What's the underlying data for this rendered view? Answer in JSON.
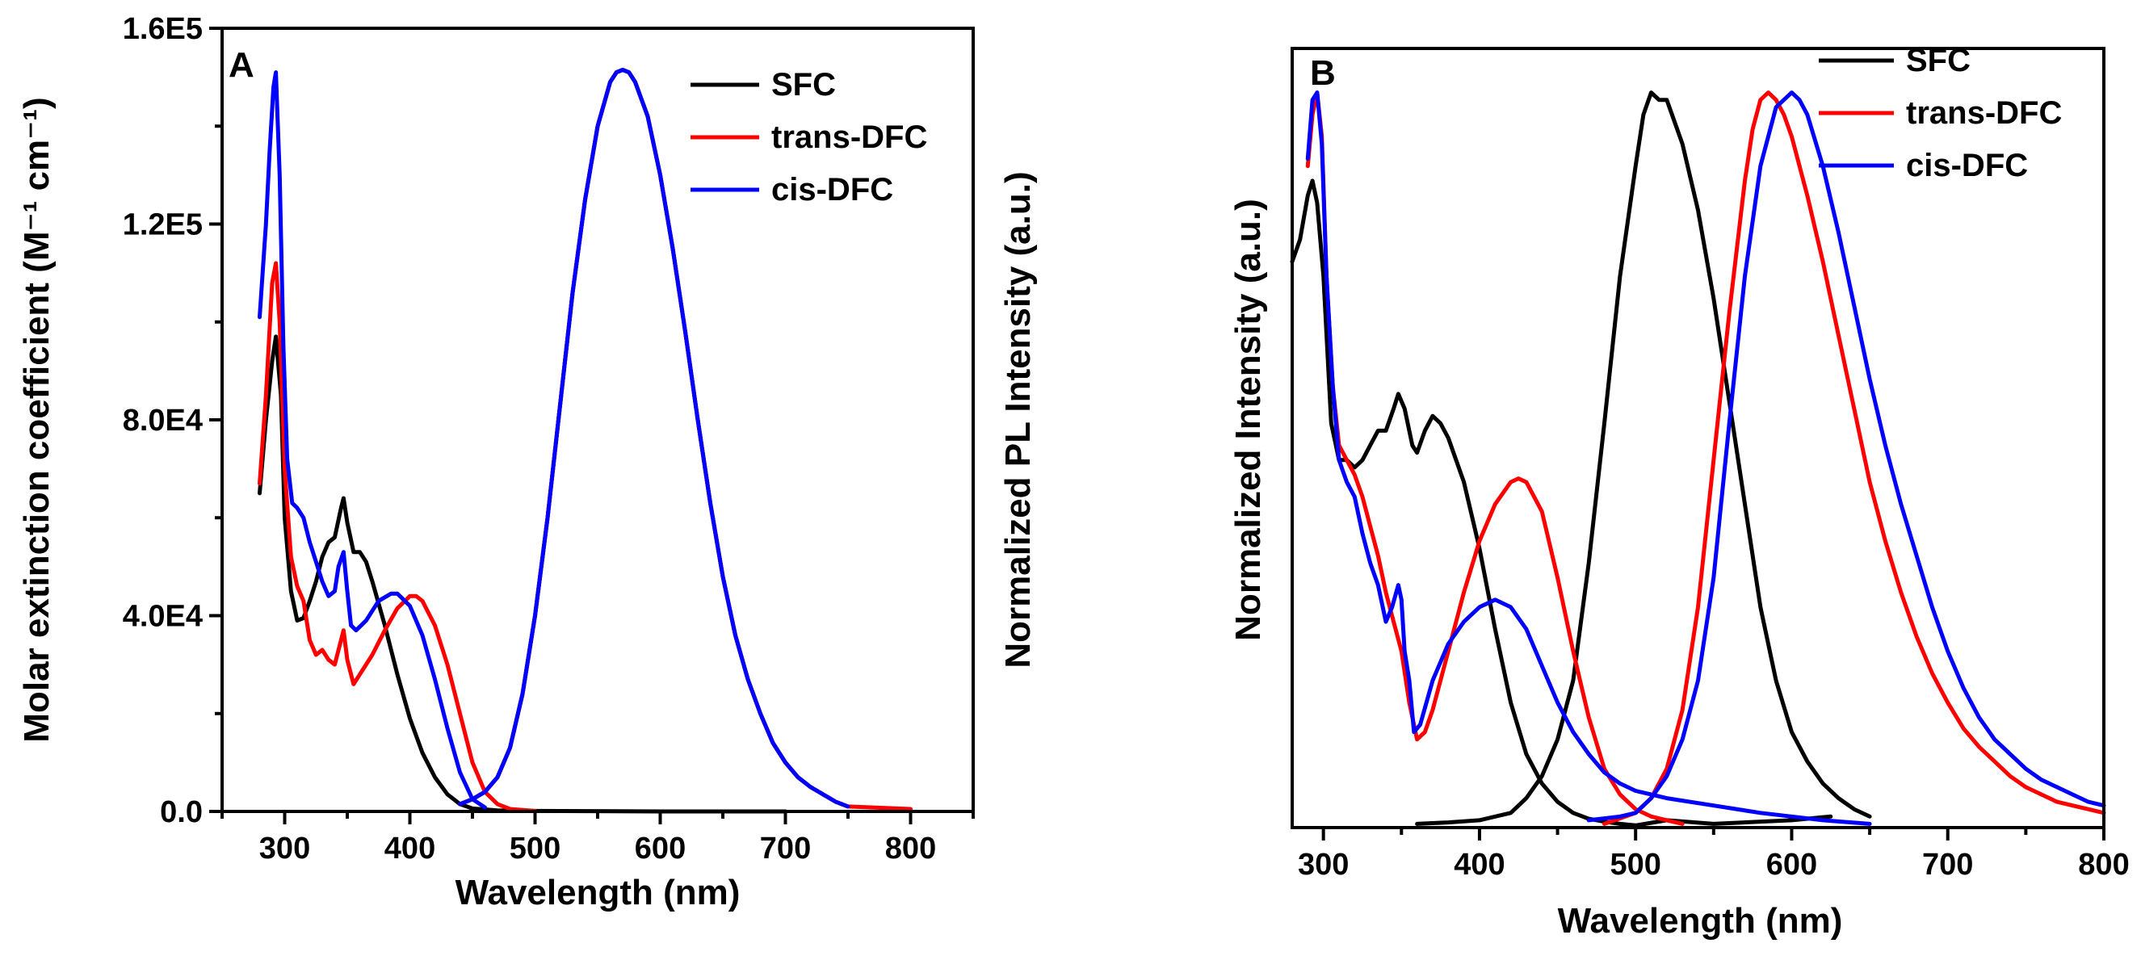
{
  "colors": {
    "SFC": "#000000",
    "trans-DFC": "#ff0000",
    "cis-DFC": "#0000ff"
  },
  "chart_data": [
    {
      "type": "line",
      "panel_label": "A",
      "xlabel": "Wavelength (nm)",
      "ylabel_left": "Molar extinction coefficient (M⁻¹ cm⁻¹)",
      "ylabel_right": "Normalized PL Intensity (a.u.)",
      "xlim": [
        250,
        850
      ],
      "ylim": [
        0,
        160000
      ],
      "xticks": [
        "300",
        "400",
        "500",
        "600",
        "700",
        "800"
      ],
      "xtick_values": [
        300,
        400,
        500,
        600,
        700,
        800
      ],
      "yticks": [
        "0.0",
        "4.0E4",
        "8.0E4",
        "1.2E5",
        "1.6E5"
      ],
      "ytick_values": [
        0,
        40000,
        80000,
        120000,
        160000
      ],
      "legend_position": "top-right",
      "legend": [
        "SFC",
        "trans-DFC",
        "cis-DFC"
      ],
      "series": [
        {
          "name": "SFC",
          "kind": "absorption",
          "x": [
            280,
            285,
            290,
            293,
            297,
            300,
            305,
            310,
            315,
            320,
            325,
            330,
            335,
            340,
            345,
            347,
            350,
            355,
            360,
            365,
            370,
            380,
            390,
            400,
            410,
            420,
            430,
            440,
            450,
            470,
            500,
            600,
            700
          ],
          "y": [
            65000,
            80000,
            92000,
            97000,
            85000,
            60000,
            45000,
            39000,
            39500,
            43000,
            47000,
            52000,
            55000,
            56000,
            62000,
            64000,
            59000,
            53000,
            53000,
            51000,
            47000,
            38000,
            28000,
            19000,
            12000,
            7000,
            3500,
            1500,
            600,
            200,
            100,
            0,
            0
          ]
        },
        {
          "name": "trans-DFC",
          "kind": "absorption",
          "x": [
            280,
            285,
            290,
            293,
            296,
            300,
            305,
            310,
            315,
            320,
            325,
            330,
            335,
            340,
            345,
            347,
            350,
            355,
            360,
            370,
            380,
            390,
            400,
            405,
            410,
            420,
            430,
            440,
            450,
            460,
            470,
            480,
            500
          ],
          "y": [
            67000,
            85000,
            108000,
            112000,
            100000,
            70000,
            52000,
            46000,
            43000,
            35000,
            32000,
            33000,
            31000,
            30000,
            35000,
            37000,
            31000,
            26000,
            28000,
            32000,
            37000,
            41500,
            44000,
            44000,
            43000,
            38000,
            30000,
            20000,
            10000,
            4000,
            1500,
            500,
            100
          ]
        },
        {
          "name": "cis-DFC",
          "kind": "absorption",
          "x": [
            280,
            285,
            288,
            291,
            293,
            296,
            299,
            302,
            306,
            310,
            315,
            320,
            325,
            330,
            335,
            340,
            343,
            347,
            350,
            353,
            357,
            365,
            375,
            385,
            390,
            400,
            410,
            420,
            430,
            440,
            450,
            460
          ],
          "y": [
            101000,
            120000,
            135000,
            148000,
            151000,
            130000,
            95000,
            72000,
            63000,
            62000,
            60000,
            55000,
            51000,
            47000,
            44000,
            45000,
            50000,
            53000,
            45000,
            38000,
            37000,
            39000,
            43000,
            44500,
            44500,
            42000,
            36000,
            27000,
            17000,
            8000,
            2500,
            800
          ]
        },
        {
          "name": "SFC",
          "kind": "pl",
          "x": [
            440,
            450,
            460,
            470,
            480,
            490,
            500,
            510,
            520,
            530,
            540,
            550,
            560,
            565,
            570,
            575,
            580,
            590,
            600,
            610,
            620,
            630,
            640,
            650,
            660,
            670,
            680,
            690,
            700,
            710,
            720,
            730,
            740,
            750
          ],
          "y": [
            1500,
            2500,
            4000,
            7000,
            13000,
            24000,
            40000,
            60000,
            83000,
            106000,
            125000,
            140000,
            149000,
            151000,
            151500,
            151000,
            149000,
            142000,
            130000,
            115000,
            98000,
            80000,
            63000,
            48000,
            36000,
            27000,
            20000,
            14000,
            10000,
            7000,
            5000,
            3500,
            2000,
            1000
          ]
        },
        {
          "name": "trans-DFC",
          "kind": "pl",
          "x": [
            440,
            450,
            460,
            470,
            480,
            490,
            500,
            510,
            520,
            530,
            540,
            550,
            560,
            565,
            570,
            575,
            580,
            590,
            600,
            610,
            620,
            630,
            640,
            650,
            660,
            670,
            680,
            690,
            700,
            710,
            720,
            730,
            740,
            750,
            760,
            770,
            780,
            790,
            800
          ],
          "y": [
            1500,
            2500,
            4000,
            7000,
            13000,
            24000,
            40000,
            60000,
            83000,
            106000,
            125000,
            140000,
            149000,
            151000,
            151500,
            151000,
            149000,
            142000,
            130000,
            115000,
            98000,
            80000,
            63000,
            48000,
            36000,
            27000,
            20000,
            14000,
            10000,
            7000,
            5000,
            3500,
            2000,
            1000,
            900,
            800,
            700,
            600,
            500
          ]
        },
        {
          "name": "cis-DFC",
          "kind": "pl",
          "x": [
            440,
            450,
            460,
            470,
            480,
            490,
            500,
            510,
            520,
            530,
            540,
            550,
            560,
            565,
            570,
            575,
            580,
            590,
            600,
            610,
            620,
            630,
            640,
            650,
            660,
            670,
            680,
            690,
            700,
            710,
            720,
            730,
            740,
            750
          ],
          "y": [
            1500,
            2500,
            4000,
            7000,
            13000,
            24000,
            40000,
            60000,
            83000,
            106000,
            125000,
            140000,
            149000,
            151000,
            151500,
            151000,
            149000,
            142000,
            130000,
            115000,
            98000,
            80000,
            63000,
            48000,
            36000,
            27000,
            20000,
            14000,
            10000,
            7000,
            5000,
            3500,
            2000,
            1000
          ]
        }
      ]
    },
    {
      "type": "line",
      "panel_label": "B",
      "xlabel": "Wavelength (nm)",
      "ylabel": "Normalized Intensity (a.u.)",
      "xlim": [
        280,
        800
      ],
      "ylim": [
        0,
        1.06
      ],
      "xticks": [
        "300",
        "400",
        "500",
        "600",
        "700",
        "800"
      ],
      "xtick_values": [
        300,
        400,
        500,
        600,
        700,
        800
      ],
      "yticks": [],
      "legend_position": "top-right",
      "legend": [
        "SFC",
        "trans-DFC",
        "cis-DFC"
      ],
      "series": [
        {
          "name": "SFC",
          "kind": "absorption",
          "x": [
            280,
            285,
            290,
            293,
            296,
            300,
            305,
            310,
            315,
            320,
            325,
            330,
            335,
            340,
            345,
            348,
            352,
            357,
            360,
            365,
            370,
            375,
            380,
            390,
            400,
            410,
            420,
            430,
            440,
            450,
            460,
            470,
            480,
            490,
            500,
            520,
            550,
            600,
            625
          ],
          "y": [
            0.77,
            0.8,
            0.86,
            0.88,
            0.85,
            0.75,
            0.55,
            0.5,
            0.5,
            0.49,
            0.5,
            0.52,
            0.54,
            0.54,
            0.57,
            0.59,
            0.57,
            0.52,
            0.51,
            0.54,
            0.56,
            0.55,
            0.53,
            0.47,
            0.38,
            0.27,
            0.17,
            0.1,
            0.06,
            0.035,
            0.02,
            0.012,
            0.008,
            0.005,
            0.003,
            0.01,
            0.005,
            0.01,
            0.015
          ]
        },
        {
          "name": "trans-DFC",
          "kind": "absorption",
          "x": [
            290,
            293,
            296,
            299,
            302,
            306,
            310,
            315,
            320,
            325,
            330,
            335,
            340,
            345,
            350,
            355,
            360,
            365,
            370,
            380,
            390,
            400,
            410,
            420,
            425,
            430,
            440,
            450,
            460,
            470,
            480,
            490,
            500,
            510,
            520,
            530
          ],
          "y": [
            0.9,
            0.97,
            1.0,
            0.94,
            0.75,
            0.6,
            0.52,
            0.5,
            0.48,
            0.45,
            0.41,
            0.37,
            0.32,
            0.28,
            0.24,
            0.17,
            0.12,
            0.13,
            0.16,
            0.24,
            0.32,
            0.39,
            0.44,
            0.47,
            0.475,
            0.47,
            0.43,
            0.34,
            0.24,
            0.15,
            0.08,
            0.045,
            0.025,
            0.015,
            0.01,
            0.005
          ]
        },
        {
          "name": "cis-DFC",
          "kind": "absorption",
          "x": [
            290,
            293,
            296,
            299,
            302,
            306,
            310,
            315,
            320,
            325,
            330,
            335,
            340,
            344,
            348,
            350,
            352,
            355,
            358,
            362,
            370,
            380,
            390,
            400,
            410,
            420,
            430,
            440,
            450,
            460,
            470,
            480,
            490,
            500,
            520,
            550,
            580,
            600,
            620,
            650
          ],
          "y": [
            0.91,
            0.99,
            1.0,
            0.93,
            0.75,
            0.6,
            0.5,
            0.47,
            0.45,
            0.4,
            0.36,
            0.33,
            0.28,
            0.3,
            0.33,
            0.31,
            0.24,
            0.2,
            0.13,
            0.14,
            0.2,
            0.25,
            0.28,
            0.3,
            0.31,
            0.3,
            0.27,
            0.22,
            0.17,
            0.13,
            0.1,
            0.075,
            0.06,
            0.05,
            0.04,
            0.03,
            0.02,
            0.015,
            0.01,
            0.005
          ]
        },
        {
          "name": "SFC",
          "kind": "pl",
          "x": [
            360,
            380,
            400,
            420,
            430,
            440,
            450,
            460,
            470,
            480,
            490,
            500,
            505,
            510,
            515,
            520,
            525,
            530,
            540,
            550,
            560,
            570,
            580,
            590,
            600,
            610,
            620,
            630,
            640,
            650
          ],
          "y": [
            0.005,
            0.007,
            0.01,
            0.02,
            0.04,
            0.07,
            0.12,
            0.2,
            0.36,
            0.55,
            0.75,
            0.9,
            0.97,
            1.0,
            0.99,
            0.99,
            0.96,
            0.93,
            0.84,
            0.72,
            0.58,
            0.44,
            0.3,
            0.2,
            0.13,
            0.09,
            0.06,
            0.04,
            0.025,
            0.015
          ]
        },
        {
          "name": "trans-DFC",
          "kind": "pl",
          "x": [
            480,
            500,
            510,
            520,
            530,
            540,
            550,
            560,
            570,
            575,
            580,
            585,
            590,
            595,
            600,
            610,
            620,
            630,
            640,
            650,
            660,
            670,
            680,
            690,
            700,
            710,
            720,
            730,
            740,
            750,
            760,
            770,
            780,
            790,
            800
          ],
          "y": [
            0.005,
            0.02,
            0.04,
            0.08,
            0.16,
            0.3,
            0.5,
            0.7,
            0.88,
            0.95,
            0.99,
            1.0,
            0.99,
            0.97,
            0.94,
            0.86,
            0.77,
            0.67,
            0.57,
            0.47,
            0.39,
            0.32,
            0.26,
            0.21,
            0.17,
            0.135,
            0.11,
            0.09,
            0.07,
            0.055,
            0.045,
            0.035,
            0.03,
            0.025,
            0.02
          ]
        },
        {
          "name": "cis-DFC",
          "kind": "pl",
          "x": [
            470,
            490,
            500,
            510,
            520,
            530,
            540,
            550,
            560,
            570,
            580,
            590,
            595,
            600,
            605,
            610,
            620,
            630,
            640,
            650,
            660,
            670,
            680,
            690,
            700,
            710,
            720,
            730,
            740,
            750,
            760,
            770,
            780,
            790,
            800
          ],
          "y": [
            0.01,
            0.015,
            0.02,
            0.04,
            0.07,
            0.12,
            0.2,
            0.34,
            0.55,
            0.75,
            0.9,
            0.98,
            0.99,
            1.0,
            0.99,
            0.97,
            0.9,
            0.81,
            0.71,
            0.61,
            0.52,
            0.44,
            0.37,
            0.3,
            0.24,
            0.19,
            0.15,
            0.12,
            0.1,
            0.08,
            0.065,
            0.055,
            0.045,
            0.035,
            0.03
          ]
        }
      ]
    }
  ]
}
